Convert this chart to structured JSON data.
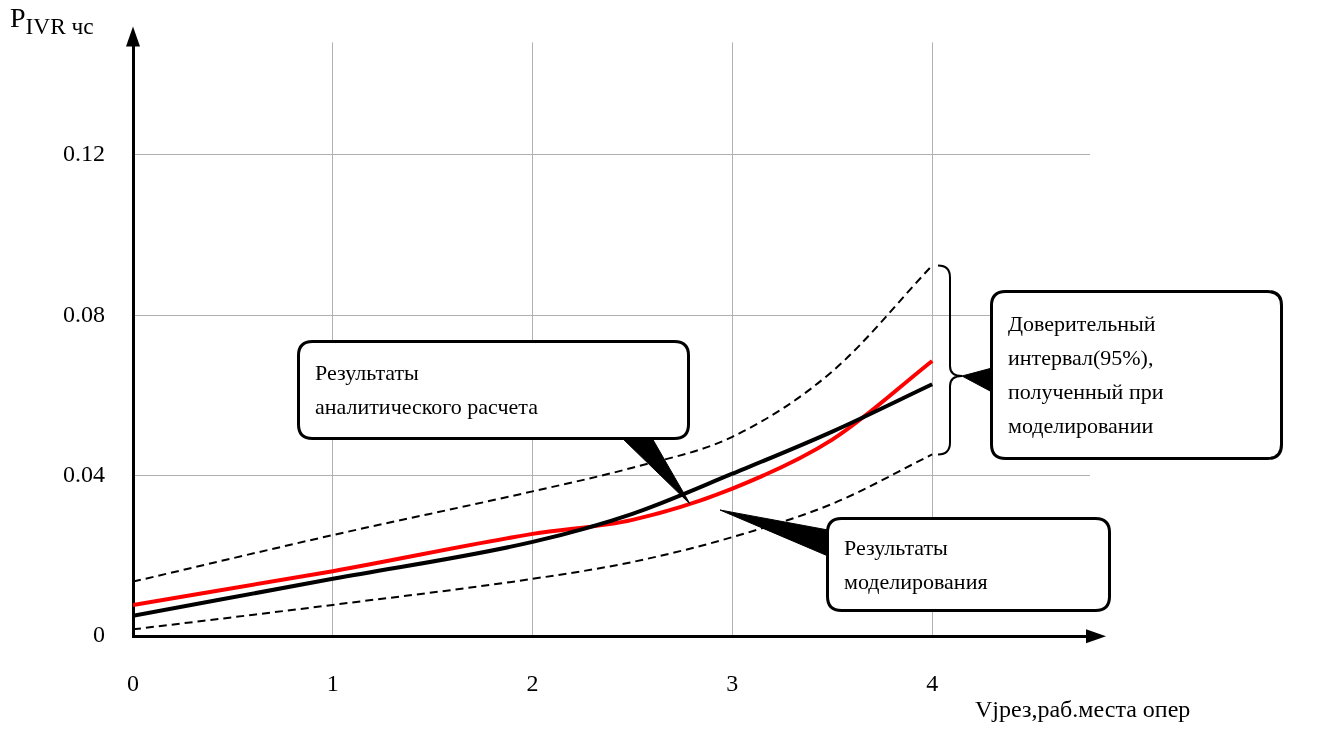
{
  "chart_data": {
    "type": "line",
    "ylabel": "P$_{IVR чс}$",
    "xlabel": "Vjрез,раб.места опер",
    "xlim": [
      0,
      4.79
    ],
    "xticks": [
      0,
      1,
      2,
      3,
      4
    ],
    "ylim": [
      0,
      0.148
    ],
    "yticks": [
      0,
      0.04,
      0.08,
      0.12
    ],
    "grid": true,
    "legend": false,
    "marker": "none",
    "series": [
      {
        "color": "#000000",
        "line_style": "solid",
        "x": [
          0,
          1,
          2,
          2.5,
          3,
          3.5,
          4
        ],
        "values": [
          0.0051,
          0.0143,
          0.0235,
          0.0305,
          0.0405,
          0.051,
          0.0628
        ]
      },
      {
        "color": "#ff0000",
        "line_style": "solid",
        "x": [
          0,
          1,
          2,
          2.5,
          3,
          3.5,
          4
        ],
        "values": [
          0.0078,
          0.0162,
          0.0255,
          0.029,
          0.0368,
          0.049,
          0.0686
        ]
      },
      {
        "color": "#000000",
        "line_style": "dashed",
        "x": [
          0,
          1,
          2,
          2.5,
          3,
          3.5,
          4
        ],
        "values": [
          0.0136,
          0.0252,
          0.0361,
          0.042,
          0.0497,
          0.066,
          0.0924
        ]
      },
      {
        "color": "#000000",
        "line_style": "dashed",
        "x": [
          0,
          1,
          2,
          2.5,
          3,
          3.5,
          4
        ],
        "values": [
          0.0017,
          0.0078,
          0.0143,
          0.0185,
          0.0247,
          0.033,
          0.0453
        ]
      }
    ],
    "annotations": [
      "Результаты\nаналитического расчета",
      "Результаты\nмоделирования",
      "Доверительный\nинтервал(95%),\nполученный при\nмоделировании"
    ]
  }
}
